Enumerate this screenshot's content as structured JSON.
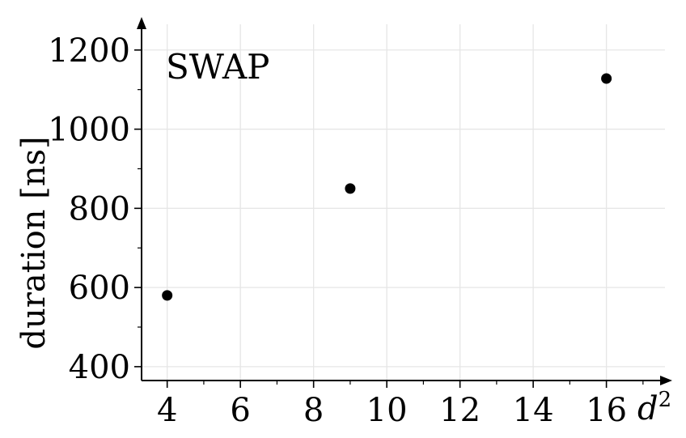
{
  "chart_data": {
    "type": "scatter",
    "x": [
      4,
      9,
      16
    ],
    "y": [
      580,
      850,
      1128
    ],
    "xticks": [
      "4",
      "6",
      "8",
      "10",
      "12",
      "14",
      "16"
    ],
    "yticks": [
      "400",
      "600",
      "800",
      "1000",
      "1200"
    ],
    "xlabel": "d",
    "xlabel_superscript": "2",
    "ylabel": "duration [ns]",
    "annotation": "SWAP",
    "xlim": [
      3.3,
      17.6
    ],
    "ylim": [
      365,
      1265
    ],
    "grid": true,
    "colors": {
      "points": "#000000",
      "grid": "#e6e6e6",
      "axis": "#000000"
    }
  }
}
